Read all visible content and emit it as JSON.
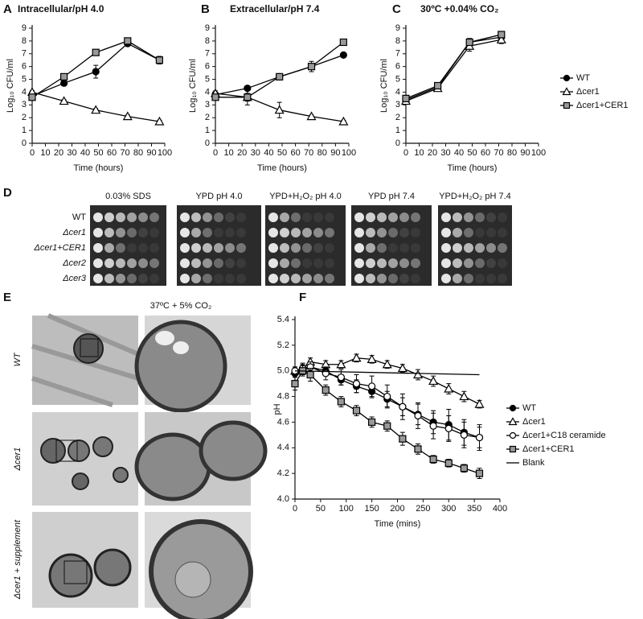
{
  "chart_data": [
    {
      "type": "line",
      "panel": "A",
      "title": "Intracellular/pH 4.0",
      "xlabel": "Time (hours)",
      "ylabel": "Log₁₀ CFU/ml",
      "x": [
        0,
        24,
        48,
        72,
        96
      ],
      "xlim": [
        0,
        100
      ],
      "xticks": [
        0,
        10,
        20,
        30,
        40,
        50,
        60,
        70,
        80,
        90,
        100
      ],
      "ylim": [
        0,
        9
      ],
      "yticks": [
        0,
        1,
        2,
        3,
        4,
        5,
        6,
        7,
        8,
        9
      ],
      "series": [
        {
          "color": "#000000",
          "marker": "circle",
          "fill": "#000000",
          "values": [
            3.7,
            4.7,
            5.6,
            7.8,
            6.5
          ],
          "errors": [
            0.15,
            0.2,
            0.5,
            0.15,
            0.3
          ]
        },
        {
          "color": "#000000",
          "marker": "triangle",
          "fill": "#ffffff",
          "values": [
            4.0,
            3.3,
            2.6,
            2.1,
            1.7
          ],
          "errors": [
            0.1,
            0.1,
            0.1,
            0.1,
            0.1
          ]
        },
        {
          "color": "#000000",
          "marker": "square",
          "fill": "#999999",
          "values": [
            3.6,
            5.2,
            7.1,
            8.0,
            6.5
          ],
          "errors": [
            0.15,
            0.2,
            0.15,
            0.15,
            0.2
          ]
        }
      ]
    },
    {
      "type": "line",
      "panel": "B",
      "title": "Extracellular/pH 7.4",
      "xlabel": "Time (hours)",
      "ylabel": "Log₁₀ CFU/ml",
      "x": [
        0,
        24,
        48,
        72,
        96
      ],
      "xlim": [
        0,
        100
      ],
      "xticks": [
        0,
        10,
        20,
        30,
        40,
        50,
        60,
        70,
        80,
        90,
        100
      ],
      "ylim": [
        0,
        9
      ],
      "yticks": [
        0,
        1,
        2,
        3,
        4,
        5,
        6,
        7,
        8,
        9
      ],
      "series": [
        {
          "color": "#000000",
          "marker": "circle",
          "fill": "#000000",
          "values": [
            3.8,
            4.3,
            5.2,
            6.0,
            6.9
          ],
          "errors": [
            0.1,
            0.1,
            0.1,
            0.2,
            0.1
          ]
        },
        {
          "color": "#000000",
          "marker": "triangle",
          "fill": "#ffffff",
          "values": [
            3.9,
            3.6,
            2.6,
            2.1,
            1.7
          ],
          "errors": [
            0.2,
            0.6,
            0.6,
            0.1,
            0.1
          ]
        },
        {
          "color": "#000000",
          "marker": "square",
          "fill": "#999999",
          "values": [
            3.6,
            3.6,
            5.2,
            6.0,
            7.9
          ],
          "errors": [
            0.2,
            0.3,
            0.1,
            0.4,
            0.2
          ]
        }
      ]
    },
    {
      "type": "line",
      "panel": "C",
      "title": "30ºC +0.04% CO₂",
      "xlabel": "Time (hours)",
      "ylabel": "Log₁₀ CFU/ml",
      "x": [
        0,
        24,
        48,
        72
      ],
      "xlim": [
        0,
        100
      ],
      "xticks": [
        0,
        10,
        20,
        30,
        40,
        50,
        60,
        70,
        80,
        90,
        100
      ],
      "ylim": [
        0,
        9
      ],
      "yticks": [
        0,
        1,
        2,
        3,
        4,
        5,
        6,
        7,
        8,
        9
      ],
      "legend": "right",
      "series": [
        {
          "name": "WT",
          "color": "#000000",
          "marker": "circle",
          "fill": "#000000",
          "values": [
            3.4,
            4.4,
            7.9,
            8.3
          ],
          "errors": [
            0.1,
            0.2,
            0.3,
            0.3
          ]
        },
        {
          "name": "Δcer1",
          "color": "#000000",
          "marker": "triangle",
          "fill": "#ffffff",
          "values": [
            3.3,
            4.3,
            7.6,
            8.1
          ],
          "errors": [
            0.1,
            0.2,
            0.4,
            0.3
          ]
        },
        {
          "name": "Δcer1+CER1",
          "color": "#000000",
          "marker": "square",
          "fill": "#999999",
          "values": [
            3.5,
            4.5,
            7.9,
            8.5
          ],
          "errors": [
            0.1,
            0.2,
            0.2,
            0.2
          ]
        }
      ]
    },
    {
      "type": "line",
      "panel": "F",
      "xlabel": "Time (mins)",
      "ylabel": "pH",
      "xlim": [
        0,
        400
      ],
      "xticks": [
        0,
        50,
        100,
        150,
        200,
        250,
        300,
        350,
        400
      ],
      "ylim": [
        4,
        5.4
      ],
      "yticks": [
        {
          "value": 4,
          "label": "4.0"
        },
        4.2,
        4.4,
        4.6,
        4.8,
        {
          "value": 5,
          "label": "5.0"
        },
        5.2,
        5.4
      ],
      "legend": "right",
      "series": [
        {
          "name": "WT",
          "color": "#000000",
          "marker": "circle",
          "fill": "#000000",
          "x": [
            0,
            15,
            30,
            60,
            90,
            120,
            150,
            180,
            210,
            240,
            270,
            300,
            330,
            360
          ],
          "values": [
            4.98,
            5.0,
            5.03,
            5.0,
            4.93,
            4.88,
            4.84,
            4.78,
            4.72,
            4.66,
            4.6,
            4.58,
            4.52,
            4.48
          ],
          "errors": [
            0.03,
            0.03,
            0.04,
            0.03,
            0.04,
            0.05,
            0.05,
            0.06,
            0.07,
            0.08,
            0.09,
            0.12,
            0.1,
            0.08
          ]
        },
        {
          "name": "Δcer1",
          "color": "#000000",
          "marker": "triangle",
          "fill": "#ffffff",
          "x": [
            0,
            15,
            30,
            60,
            90,
            120,
            150,
            180,
            210,
            240,
            270,
            300,
            330,
            360
          ],
          "values": [
            5.0,
            5.02,
            5.07,
            5.05,
            5.05,
            5.1,
            5.09,
            5.05,
            5.02,
            4.97,
            4.92,
            4.86,
            4.8,
            4.74
          ],
          "errors": [
            0.03,
            0.03,
            0.03,
            0.03,
            0.03,
            0.03,
            0.03,
            0.03,
            0.03,
            0.04,
            0.04,
            0.04,
            0.04,
            0.03
          ]
        },
        {
          "name": "Δcer1+C18 ceramide",
          "color": "#000000",
          "marker": "circle",
          "fill": "#ffffff",
          "x": [
            0,
            15,
            30,
            60,
            90,
            120,
            150,
            180,
            210,
            240,
            270,
            300,
            330,
            360
          ],
          "values": [
            5.0,
            5.02,
            5.03,
            4.98,
            4.95,
            4.9,
            4.88,
            4.8,
            4.72,
            4.65,
            4.57,
            4.55,
            4.5,
            4.48
          ],
          "errors": [
            0.03,
            0.04,
            0.04,
            0.05,
            0.06,
            0.07,
            0.08,
            0.09,
            0.1,
            0.1,
            0.1,
            0.1,
            0.1,
            0.1
          ]
        },
        {
          "name": "Δcer1+CER1",
          "color": "#000000",
          "marker": "square",
          "fill": "#999999",
          "x": [
            0,
            15,
            30,
            60,
            90,
            120,
            150,
            180,
            210,
            240,
            270,
            300,
            330,
            360
          ],
          "values": [
            4.9,
            5.0,
            4.97,
            4.85,
            4.76,
            4.69,
            4.6,
            4.57,
            4.47,
            4.39,
            4.31,
            4.28,
            4.24,
            4.2
          ],
          "errors": [
            0.05,
            0.04,
            0.05,
            0.04,
            0.04,
            0.04,
            0.04,
            0.04,
            0.05,
            0.04,
            0.03,
            0.03,
            0.03,
            0.04
          ]
        },
        {
          "name": "Blank",
          "color": "#000000",
          "x": [
            0,
            360
          ],
          "values": [
            5.0,
            4.97
          ]
        }
      ]
    }
  ],
  "panel_d": {
    "label": "D",
    "columns": [
      "0.03% SDS",
      "YPD pH 4.0",
      "YPD+H₂O₂ pH 4.0",
      "YPD pH 7.4",
      "YPD+H₂O₂ pH 7.4"
    ],
    "rows": [
      "WT",
      "Δcer1",
      "Δcer1+CER1",
      "Δcer2",
      "Δcer3"
    ]
  },
  "panel_e": {
    "label": "E",
    "title": "37ºC + 5% CO₂",
    "rows": [
      "WT",
      "Δcer1",
      "Δcer1 + supplement"
    ]
  }
}
